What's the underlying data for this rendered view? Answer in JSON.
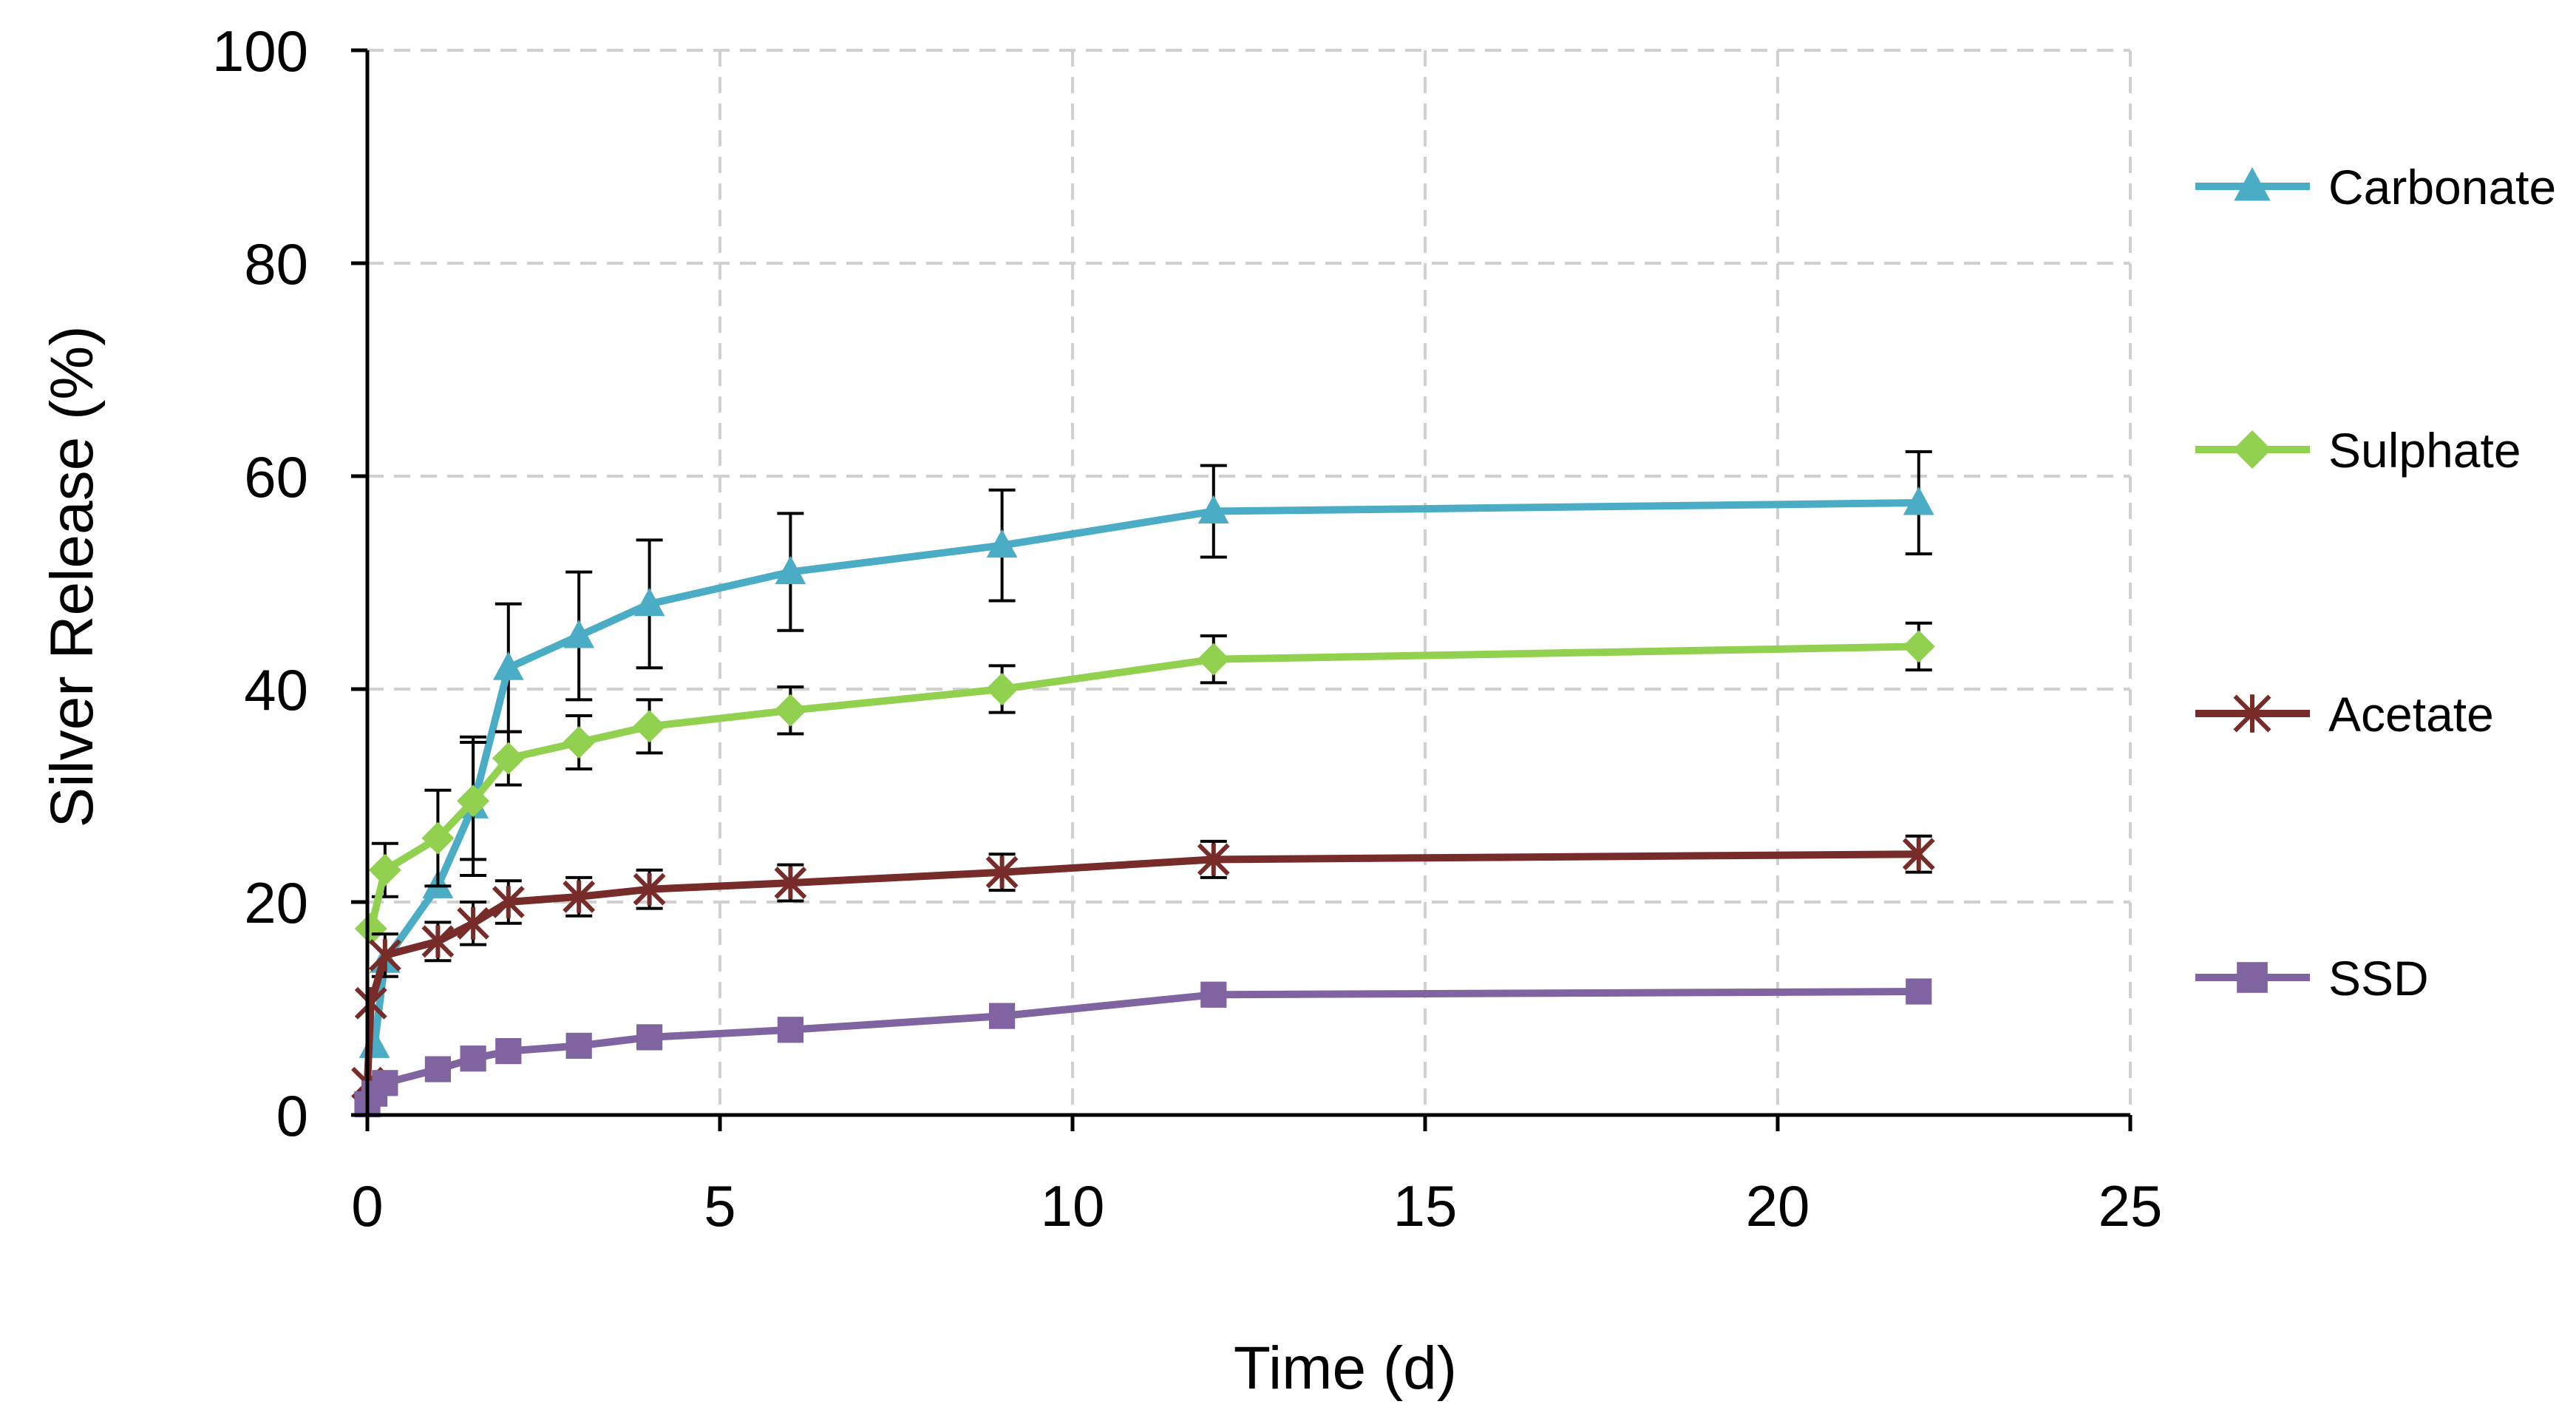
{
  "chart_data": {
    "type": "line",
    "title": "",
    "xlabel": "Time (d)",
    "ylabel": "Silver Release (%)",
    "xlim": [
      0,
      25
    ],
    "ylim": [
      0,
      100
    ],
    "xticks": [
      0,
      5,
      10,
      15,
      20,
      25
    ],
    "yticks": [
      0,
      20,
      40,
      60,
      80,
      100
    ],
    "grid": true,
    "legend_position": "right",
    "series": [
      {
        "name": "Carbonate",
        "color": "#4BACC6",
        "marker": "triangle",
        "points": [
          {
            "x": 0.1,
            "y": 6.5,
            "err": 0
          },
          {
            "x": 0.25,
            "y": 14.5,
            "err": 0
          },
          {
            "x": 1,
            "y": 21.5,
            "err": 0
          },
          {
            "x": 1.5,
            "y": 29,
            "err": 6.5
          },
          {
            "x": 2,
            "y": 42,
            "err": 6
          },
          {
            "x": 3,
            "y": 45,
            "err": 6
          },
          {
            "x": 4,
            "y": 48,
            "err": 6
          },
          {
            "x": 6,
            "y": 51,
            "err": 5.5
          },
          {
            "x": 9,
            "y": 53.5,
            "err": 5.2
          },
          {
            "x": 12,
            "y": 56.7,
            "err": 4.3
          },
          {
            "x": 22,
            "y": 57.5,
            "err": 4.8
          }
        ]
      },
      {
        "name": "Sulphate",
        "color": "#92D050",
        "marker": "diamond",
        "points": [
          {
            "x": 0.05,
            "y": 17.5,
            "err": 0
          },
          {
            "x": 0.25,
            "y": 23,
            "err": 2.5
          },
          {
            "x": 1,
            "y": 26,
            "err": 4.5
          },
          {
            "x": 1.5,
            "y": 29.5,
            "err": 5.5
          },
          {
            "x": 2,
            "y": 33.5,
            "err": 2.5
          },
          {
            "x": 3,
            "y": 35,
            "err": 2.5
          },
          {
            "x": 4,
            "y": 36.5,
            "err": 2.5
          },
          {
            "x": 6,
            "y": 38,
            "err": 2.2
          },
          {
            "x": 9,
            "y": 40,
            "err": 2.2
          },
          {
            "x": 12,
            "y": 42.8,
            "err": 2.2
          },
          {
            "x": 22,
            "y": 44,
            "err": 2.2
          }
        ]
      },
      {
        "name": "Acetate",
        "color": "#772C2A",
        "marker": "star",
        "points": [
          {
            "x": 0,
            "y": 3,
            "err": 0
          },
          {
            "x": 0.05,
            "y": 10.5,
            "err": 0
          },
          {
            "x": 0.25,
            "y": 15,
            "err": 2
          },
          {
            "x": 1,
            "y": 16.3,
            "err": 1.8
          },
          {
            "x": 1.5,
            "y": 18,
            "err": 2
          },
          {
            "x": 2,
            "y": 20,
            "err": 2
          },
          {
            "x": 3,
            "y": 20.5,
            "err": 1.8
          },
          {
            "x": 4,
            "y": 21.2,
            "err": 1.8
          },
          {
            "x": 6,
            "y": 21.8,
            "err": 1.7
          },
          {
            "x": 9,
            "y": 22.8,
            "err": 1.7
          },
          {
            "x": 12,
            "y": 24,
            "err": 1.7
          },
          {
            "x": 22,
            "y": 24.5,
            "err": 1.7
          }
        ]
      },
      {
        "name": "SSD",
        "color": "#8064A2",
        "marker": "square",
        "points": [
          {
            "x": 0,
            "y": 1,
            "err": 0
          },
          {
            "x": 0.1,
            "y": 2,
            "err": 0
          },
          {
            "x": 0.25,
            "y": 3,
            "err": 0
          },
          {
            "x": 1,
            "y": 4.3,
            "err": 0
          },
          {
            "x": 1.5,
            "y": 5.3,
            "err": 0
          },
          {
            "x": 2,
            "y": 6,
            "err": 0
          },
          {
            "x": 3,
            "y": 6.5,
            "err": 0
          },
          {
            "x": 4,
            "y": 7.3,
            "err": 0
          },
          {
            "x": 6,
            "y": 8,
            "err": 0
          },
          {
            "x": 9,
            "y": 9.3,
            "err": 0
          },
          {
            "x": 12,
            "y": 11.3,
            "err": 0
          },
          {
            "x": 22,
            "y": 11.6,
            "err": 0
          }
        ]
      }
    ]
  }
}
